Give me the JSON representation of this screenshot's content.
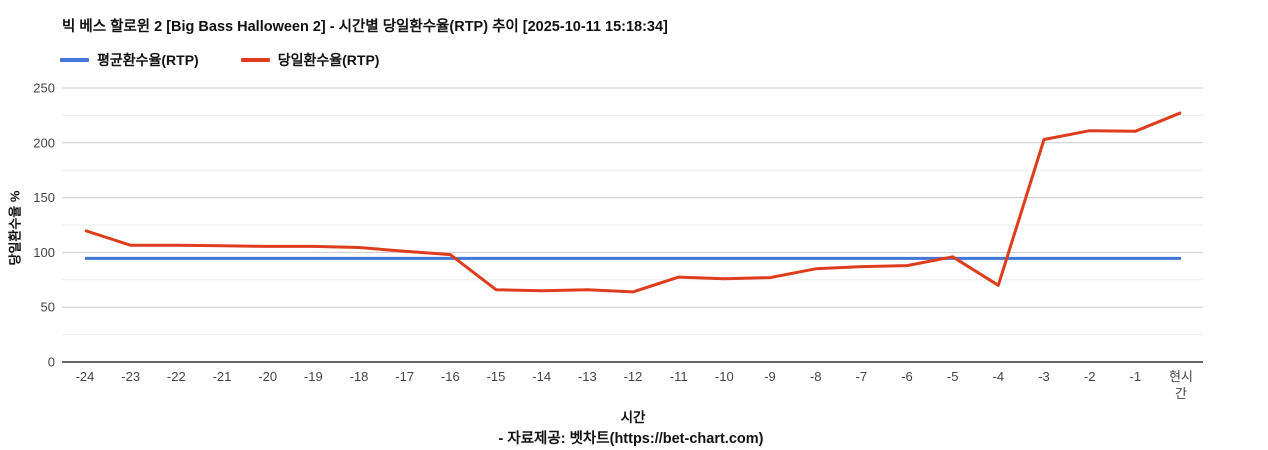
{
  "title": "빅 베스 할로윈 2 [Big Bass Halloween 2] - 시간별 당일환수율(RTP) 추이 [2025-10-11 15:18:34]",
  "footer": "- 자료제공: 벳차트(https://bet-chart.com)",
  "chart_data": {
    "type": "line",
    "title": "빅 베스 할로윈 2 [Big Bass Halloween 2] - 시간별 당일환수율(RTP) 추이 [2025-10-11 15:18:34]",
    "xlabel": "시간",
    "ylabel": "당일환수율 %",
    "categories": [
      "-24",
      "-23",
      "-22",
      "-21",
      "-20",
      "-19",
      "-18",
      "-17",
      "-16",
      "-15",
      "-14",
      "-13",
      "-12",
      "-11",
      "-10",
      "-9",
      "-8",
      "-7",
      "-6",
      "-5",
      "-4",
      "-3",
      "-2",
      "-1",
      "현시간"
    ],
    "series": [
      {
        "name": "평균환수율(RTP)",
        "color": "#4376d8",
        "values": [
          94.5,
          94.5,
          94.5,
          94.5,
          94.5,
          94.5,
          94.5,
          94.5,
          94.5,
          94.5,
          94.5,
          94.5,
          94.5,
          94.5,
          94.5,
          94.5,
          94.5,
          94.5,
          94.5,
          94.5,
          94.5,
          94.5,
          94.5,
          94.5,
          94.5
        ]
      },
      {
        "name": "당일환수율(RTP)",
        "color": "#dd3d1d",
        "values": [
          120,
          106.5,
          106.5,
          106,
          105.5,
          105.5,
          104.5,
          101,
          98,
          66,
          65,
          66,
          64,
          77.5,
          76,
          77,
          85,
          87,
          88,
          96,
          70,
          203,
          211,
          210.5,
          227.5
        ]
      }
    ],
    "ylim": [
      0,
      250
    ],
    "yticks": [
      0,
      50,
      100,
      150,
      200,
      250
    ],
    "minor_grid_step": 25,
    "grid": true,
    "legend_position": "top-left",
    "colors": {
      "major_grid": "#cccccc",
      "minor_grid": "#ededed",
      "zero_axis": "#333333",
      "tick_label": "#444444"
    }
  }
}
